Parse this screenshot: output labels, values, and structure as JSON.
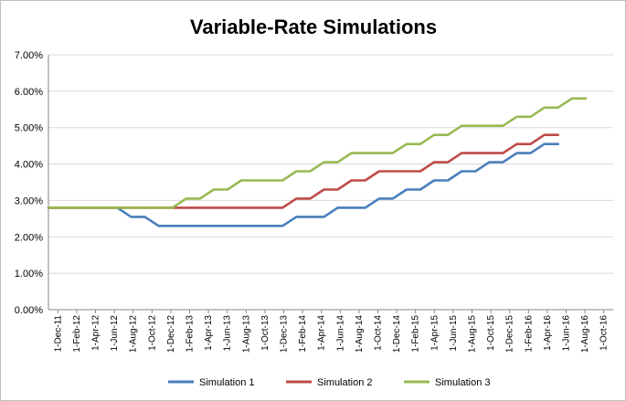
{
  "chart_data": {
    "type": "line",
    "title": "Variable-Rate Simulations",
    "xlabel": "",
    "ylabel": "",
    "ylim": [
      0,
      7
    ],
    "y_unit": "%",
    "y_ticks": [
      "0.00%",
      "1.00%",
      "2.00%",
      "3.00%",
      "4.00%",
      "5.00%",
      "6.00%",
      "7.00%"
    ],
    "x_tick_labels": [
      "1-Dec-11",
      "1-Feb-12",
      "1-Apr-12",
      "1-Jun-12",
      "1-Aug-12",
      "1-Oct-12",
      "1-Dec-12",
      "1-Feb-13",
      "1-Apr-13",
      "1-Jun-13",
      "1-Aug-13",
      "1-Oct-13",
      "1-Dec-13",
      "1-Feb-14",
      "1-Apr-14",
      "1-Jun-14",
      "1-Aug-14",
      "1-Oct-14",
      "1-Dec-14",
      "1-Feb-15",
      "1-Apr-15",
      "1-Jun-15",
      "1-Aug-15",
      "1-Oct-15",
      "1-Dec-15",
      "1-Feb-16",
      "1-Apr-16",
      "1-Jun-16",
      "1-Aug-16",
      "1-Oct-16"
    ],
    "grid": true,
    "legend_position": "bottom",
    "series": [
      {
        "name": "Simulation 1",
        "color": "#4a7ebb",
        "values": [
          2.8,
          2.8,
          2.8,
          2.55,
          2.55,
          2.3,
          2.3,
          2.3,
          2.3,
          2.3,
          2.3,
          2.3,
          2.3,
          2.3,
          2.3,
          2.55,
          2.55,
          2.55,
          2.8,
          2.8,
          2.8,
          3.05,
          3.05,
          3.3,
          3.3,
          3.55,
          3.55,
          3.8,
          3.8,
          4.05,
          4.05,
          4.3,
          4.3,
          4.55,
          4.55
        ]
      },
      {
        "name": "Simulation 2",
        "color": "#be4b48",
        "values": [
          2.8,
          2.8,
          2.8,
          2.8,
          2.8,
          2.8,
          2.8,
          2.8,
          2.8,
          2.8,
          2.8,
          2.8,
          2.8,
          2.8,
          2.8,
          3.05,
          3.05,
          3.3,
          3.3,
          3.55,
          3.55,
          3.8,
          3.8,
          3.8,
          3.8,
          4.05,
          4.05,
          4.3,
          4.3,
          4.3,
          4.3,
          4.55,
          4.55,
          4.8,
          4.8
        ]
      },
      {
        "name": "Simulation 3",
        "color": "#98b954",
        "values": [
          2.8,
          2.8,
          2.8,
          2.8,
          2.8,
          2.8,
          2.8,
          3.05,
          3.05,
          3.3,
          3.3,
          3.55,
          3.55,
          3.55,
          3.55,
          3.8,
          3.8,
          4.05,
          4.05,
          4.3,
          4.3,
          4.3,
          4.3,
          4.55,
          4.55,
          4.8,
          4.8,
          5.05,
          5.05,
          5.05,
          5.05,
          5.3,
          5.3,
          5.55,
          5.55,
          5.8,
          5.8
        ]
      }
    ],
    "x_positions": {
      "Simulation 1": [
        0,
        4,
        5,
        6,
        7,
        8,
        9,
        10,
        11,
        12,
        13,
        14,
        15,
        16,
        17,
        18,
        19,
        20,
        21,
        22,
        23,
        24,
        25,
        26,
        27,
        28,
        29,
        30,
        31,
        32,
        33,
        34,
        35,
        36,
        37
      ],
      "Simulation 2": [
        0,
        4,
        5,
        6,
        7,
        8,
        9,
        10,
        11,
        12,
        13,
        14,
        15,
        16,
        17,
        18,
        19,
        20,
        21,
        22,
        23,
        24,
        25,
        26,
        27,
        28,
        29,
        30,
        31,
        32,
        33,
        34,
        35,
        36,
        37
      ],
      "Simulation 3": [
        0,
        4,
        5,
        6,
        7,
        8,
        9,
        10,
        11,
        12,
        13,
        14,
        15,
        16,
        17,
        18,
        19,
        20,
        21,
        22,
        23,
        24,
        25,
        26,
        27,
        28,
        29,
        30,
        31,
        32,
        33,
        34,
        35,
        36,
        37,
        38,
        39
      ]
    }
  }
}
